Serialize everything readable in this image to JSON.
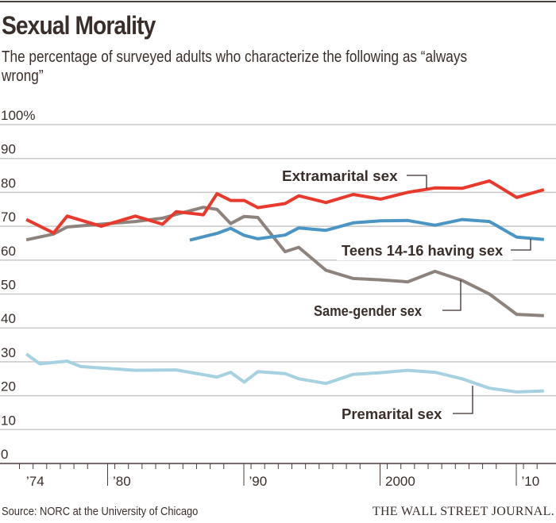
{
  "title": "Sexual Morality",
  "subtitle": "The percentage of surveyed adults who characterize the following as “always wrong”",
  "source": "Source: NORC at the University of Chicago",
  "logo": "THE WALL STREET JOURNAL.",
  "colors": {
    "text": "#3a2e2a",
    "grid": "#c8c8c8"
  },
  "chart_data": {
    "type": "line",
    "title": "Sexual Morality",
    "ylim": [
      0,
      100
    ],
    "xlim": [
      1974,
      2012
    ],
    "yticks": [
      {
        "value": 100,
        "label": "100%"
      },
      {
        "value": 90,
        "label": "90"
      },
      {
        "value": 80,
        "label": "80"
      },
      {
        "value": 70,
        "label": "70"
      },
      {
        "value": 60,
        "label": "60"
      },
      {
        "value": 50,
        "label": "50"
      },
      {
        "value": 40,
        "label": "40"
      },
      {
        "value": 30,
        "label": "30"
      },
      {
        "value": 20,
        "label": "20"
      },
      {
        "value": 10,
        "label": "10"
      },
      {
        "value": 0,
        "label": "0"
      }
    ],
    "xticks": [
      {
        "value": 1974,
        "label": "’74"
      },
      {
        "value": 1980,
        "label": "’80"
      },
      {
        "value": 1990,
        "label": "’90"
      },
      {
        "value": 2000,
        "label": "2000"
      },
      {
        "value": 2010,
        "label": "’10"
      }
    ],
    "grid": true,
    "series": [
      {
        "name": "Extramarital sex",
        "color": "#e8392c",
        "x": [
          1974,
          1976,
          1977,
          1979.5,
          1982,
          1984,
          1985,
          1987,
          1988,
          1989,
          1990,
          1991,
          1993,
          1994,
          1996,
          1998,
          2000,
          2002,
          2004,
          2006,
          2008,
          2010,
          2012
        ],
        "y": [
          72,
          68,
          73,
          70,
          73,
          70.6,
          74.3,
          73.4,
          79.6,
          77.6,
          77.6,
          75.5,
          76.7,
          79,
          77,
          79.4,
          78,
          80,
          81.3,
          81.2,
          83.4,
          78.5,
          80.8
        ]
      },
      {
        "name": "Teens 14-16 having sex",
        "color": "#4a95c4",
        "x": [
          1986,
          1988,
          1989,
          1990,
          1991,
          1993,
          1994,
          1996,
          1998,
          2000,
          2002,
          2004,
          2006,
          2008,
          2010,
          2012
        ],
        "y": [
          65.9,
          67.9,
          69.4,
          67.3,
          66.3,
          67.4,
          69.5,
          68.8,
          71,
          71.6,
          71.7,
          70.3,
          72,
          71.4,
          66.8,
          66.1
        ]
      },
      {
        "name": "Same-gender sex",
        "color": "#8e837c",
        "x": [
          1974,
          1976,
          1977,
          1980,
          1982,
          1984,
          1985,
          1987,
          1988,
          1989,
          1990,
          1991,
          1993,
          1994,
          1996,
          1998,
          2000,
          2002,
          2004,
          2006,
          2008,
          2010,
          2012
        ],
        "y": [
          66,
          67.7,
          69.8,
          70.8,
          71.4,
          72.4,
          73.5,
          75.6,
          75,
          70.8,
          72.9,
          72.6,
          62.5,
          63.8,
          57,
          54.6,
          54.2,
          53.6,
          56.7,
          54,
          50,
          44,
          43.6
        ]
      },
      {
        "name": "Premarital sex",
        "color": "#a6d1e0",
        "x": [
          1974,
          1975,
          1977,
          1978,
          1982,
          1985,
          1988,
          1989,
          1990,
          1991,
          1993,
          1994,
          1996,
          1998,
          2000,
          2002,
          2004,
          2006,
          2008,
          2010,
          2012
        ],
        "y": [
          32.3,
          29.4,
          30.2,
          28.6,
          27.5,
          27.6,
          25.5,
          26.9,
          24,
          27.1,
          26.5,
          25,
          23.6,
          26.3,
          26.8,
          27.5,
          26.9,
          25,
          22.2,
          21.1,
          21.4
        ]
      }
    ]
  }
}
